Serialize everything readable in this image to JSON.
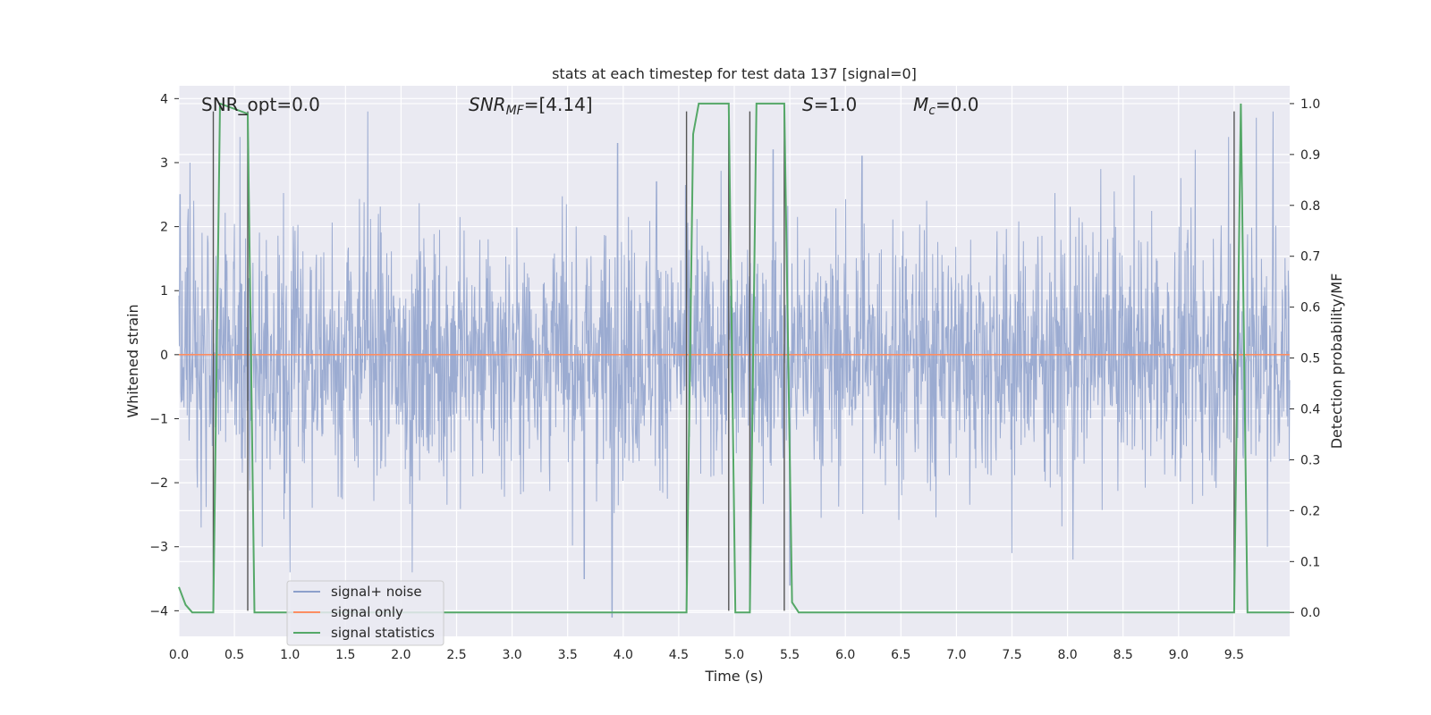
{
  "chart_data": {
    "type": "line",
    "title": "stats at each timestep for test data 137 [signal=0]",
    "xlabel": "Time (s)",
    "ylabel": "Whitened strain",
    "ylabel_right": "Detection probability/MF",
    "xlim": [
      0.0,
      10.0
    ],
    "ylim": [
      -4.4,
      4.2
    ],
    "ylim_right": [
      -0.047,
      1.035
    ],
    "x_ticks": [
      0.0,
      0.5,
      1.0,
      1.5,
      2.0,
      2.5,
      3.0,
      3.5,
      4.0,
      4.5,
      5.0,
      5.5,
      6.0,
      6.5,
      7.0,
      7.5,
      8.0,
      8.5,
      9.0,
      9.5
    ],
    "x_tick_labels": [
      "0.0",
      "0.5",
      "1.0",
      "1.5",
      "2.0",
      "2.5",
      "3.0",
      "3.5",
      "4.0",
      "4.5",
      "5.0",
      "5.5",
      "6.0",
      "6.5",
      "7.0",
      "7.5",
      "8.0",
      "8.5",
      "9.0",
      "9.5"
    ],
    "y_ticks": [
      -4,
      -3,
      -2,
      -1,
      0,
      1,
      2,
      3,
      4
    ],
    "y_tick_labels": [
      "−4",
      "−3",
      "−2",
      "−1",
      "0",
      "1",
      "2",
      "3",
      "4"
    ],
    "y_right_ticks": [
      0.0,
      0.1,
      0.2,
      0.3,
      0.4,
      0.5,
      0.6,
      0.7,
      0.8,
      0.9,
      1.0
    ],
    "y_right_tick_labels": [
      "0.0",
      "0.1",
      "0.2",
      "0.3",
      "0.4",
      "0.5",
      "0.6",
      "0.7",
      "0.8",
      "0.9",
      "1.0"
    ],
    "annotations": {
      "snr_opt": "SNR_opt=0.0",
      "snr_mf_label": "SNR",
      "snr_mf_sub": "MF",
      "snr_mf_value": "=[4.14]",
      "s_label": "S",
      "s_value": "=1.0",
      "mc_label": "M",
      "mc_sub": "c",
      "mc_value": "=0.0"
    },
    "grid": true,
    "legend_position": "lower-left",
    "series": [
      {
        "name": "signal+ noise",
        "color": "#8da0cb",
        "axis": "left",
        "note_peaks": [
          {
            "x": 0.01,
            "y": 2.5
          },
          {
            "x": 0.1,
            "y": 3.0
          },
          {
            "x": 0.55,
            "y": 3.4
          },
          {
            "x": 1.7,
            "y": 3.8
          },
          {
            "x": 2.1,
            "y": 2.8
          },
          {
            "x": 3.65,
            "y": 3.4
          },
          {
            "x": 3.95,
            "y": 3.3
          },
          {
            "x": 4.3,
            "y": 2.7
          },
          {
            "x": 5.35,
            "y": 3.2
          },
          {
            "x": 6.15,
            "y": 3.1
          },
          {
            "x": 8.3,
            "y": 2.9
          },
          {
            "x": 8.6,
            "y": 2.8
          },
          {
            "x": 9.15,
            "y": 3.2
          },
          {
            "x": 9.45,
            "y": 3.4
          },
          {
            "x": 9.7,
            "y": 3.7
          },
          {
            "x": 9.85,
            "y": 3.8
          }
        ],
        "note_troughs": [
          {
            "x": 0.2,
            "y": -2.7
          },
          {
            "x": 0.75,
            "y": -3.0
          },
          {
            "x": 1.0,
            "y": -3.4
          },
          {
            "x": 2.1,
            "y": -3.4
          },
          {
            "x": 3.65,
            "y": -3.5
          },
          {
            "x": 3.9,
            "y": -4.1
          },
          {
            "x": 5.5,
            "y": -3.6
          },
          {
            "x": 7.5,
            "y": -3.1
          },
          {
            "x": 8.05,
            "y": -3.2
          },
          {
            "x": 9.8,
            "y": -3.0
          }
        ]
      },
      {
        "name": "signal only",
        "color": "#fc8d62",
        "axis": "left",
        "x": [
          0.0,
          10.0
        ],
        "y": [
          0.0,
          0.0
        ]
      },
      {
        "name": "signal statistics",
        "color": "#55a868",
        "axis": "right",
        "x": [
          0.0,
          0.06,
          0.12,
          0.31,
          0.37,
          0.62,
          0.68,
          4.57,
          4.63,
          4.68,
          4.95,
          5.01,
          5.14,
          5.2,
          5.45,
          5.52,
          5.58,
          9.5,
          9.56,
          9.62,
          9.68,
          10.0
        ],
        "y": [
          0.05,
          0.015,
          0.0,
          0.0,
          1.0,
          0.98,
          0.0,
          0.0,
          0.94,
          1.0,
          1.0,
          0.0,
          0.0,
          1.0,
          1.0,
          0.02,
          0.0,
          0.0,
          1.0,
          0.0,
          0.0,
          0.0
        ]
      },
      {
        "name": "",
        "color": "#555555",
        "axis": "left",
        "type": "vlines",
        "x": [
          0.31,
          0.62,
          4.57,
          4.95,
          5.14,
          5.45,
          9.5
        ],
        "y_top": 3.8,
        "y_bottom": -4.0
      }
    ]
  }
}
